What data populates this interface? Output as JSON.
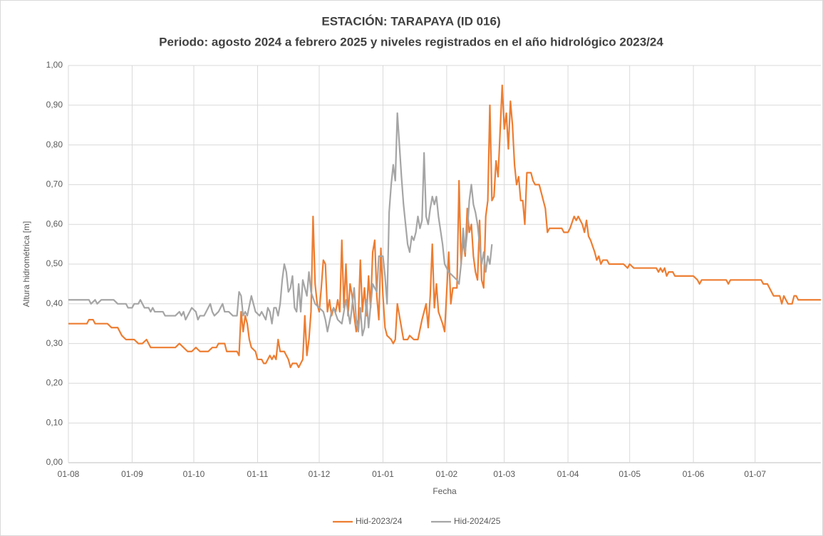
{
  "chart_data": {
    "type": "line",
    "title": "ESTACIÓN: TARAPAYA (ID 016)",
    "subtitle": "Periodo: agosto 2024 a febrero 2025 y niveles registrados en el año hidrológico 2023/24",
    "x_label": "Fecha",
    "y_label": "Altura hidrométrica [m]",
    "xlim": [
      0,
      366
    ],
    "ylim": [
      0,
      1
    ],
    "xticks": [
      {
        "value": 0,
        "label": "01-08"
      },
      {
        "value": 31,
        "label": "01-09"
      },
      {
        "value": 61,
        "label": "01-10"
      },
      {
        "value": 92,
        "label": "01-11"
      },
      {
        "value": 122,
        "label": "01-12"
      },
      {
        "value": 153,
        "label": "01-01"
      },
      {
        "value": 184,
        "label": "01-02"
      },
      {
        "value": 212,
        "label": "01-03"
      },
      {
        "value": 243,
        "label": "01-04"
      },
      {
        "value": 273,
        "label": "01-05"
      },
      {
        "value": 304,
        "label": "01-06"
      },
      {
        "value": 334,
        "label": "01-07"
      }
    ],
    "yticks": [
      {
        "value": 0,
        "label": "0,00"
      },
      {
        "value": 0.1,
        "label": "0,10"
      },
      {
        "value": 0.2,
        "label": "0,20"
      },
      {
        "value": 0.3,
        "label": "0,30"
      },
      {
        "value": 0.4,
        "label": "0,40"
      },
      {
        "value": 0.5,
        "label": "0,50"
      },
      {
        "value": 0.6,
        "label": "0,60"
      },
      {
        "value": 0.7,
        "label": "0,70"
      },
      {
        "value": 0.8,
        "label": "0,80"
      },
      {
        "value": 0.9,
        "label": "0,90"
      },
      {
        "value": 1,
        "label": "1,00"
      }
    ],
    "grid": true,
    "legend": "bottom",
    "series": [
      {
        "name": "Hid-2023/24",
        "color": "#ed7d31",
        "x": [
          0,
          9,
          10,
          12,
          13,
          19,
          21,
          24,
          26,
          28,
          32,
          34,
          36,
          38,
          40,
          44,
          48,
          52,
          54,
          56,
          58,
          60,
          62,
          64,
          68,
          70,
          72,
          73,
          76,
          77,
          80,
          82,
          83,
          84,
          85,
          86,
          87,
          88,
          89,
          91,
          92,
          94,
          95,
          96,
          98,
          99,
          100,
          101,
          102,
          103,
          105,
          106,
          107,
          108,
          109,
          111,
          112,
          113,
          114,
          115,
          116,
          117,
          118,
          119,
          120,
          121,
          122,
          123,
          124,
          125,
          126,
          127,
          128,
          129,
          130,
          131,
          132,
          133,
          134,
          135,
          136,
          137,
          138,
          139,
          140,
          141,
          142,
          143,
          144,
          145,
          146,
          147,
          148,
          149,
          150,
          151,
          152,
          153,
          154,
          155,
          157,
          158,
          159,
          160,
          161,
          163,
          165,
          166,
          168,
          170,
          172,
          173,
          174,
          175,
          176,
          177,
          178,
          179,
          180,
          182,
          183,
          184,
          185,
          186,
          187,
          189,
          190,
          191,
          192,
          193,
          194,
          195,
          196,
          197,
          198,
          199,
          200,
          201,
          202,
          203,
          204,
          205,
          206,
          207,
          208,
          209,
          211,
          212,
          213,
          214,
          215,
          216,
          217,
          218,
          219,
          220,
          221,
          222,
          223,
          225,
          226,
          227,
          229,
          231,
          232,
          233,
          234,
          236,
          240,
          241,
          243,
          244,
          246,
          247,
          248,
          250,
          251,
          252,
          253,
          254,
          256,
          257,
          258,
          259,
          260,
          262,
          263,
          270,
          272,
          273,
          275,
          286,
          287,
          288,
          289,
          290,
          291,
          292,
          294,
          295,
          304,
          306,
          307,
          308,
          320,
          321,
          322,
          337,
          338,
          340,
          341,
          343,
          346,
          347,
          348,
          349,
          350,
          352,
          353,
          354,
          355,
          366
        ],
        "values": [
          0.35,
          0.35,
          0.36,
          0.36,
          0.35,
          0.35,
          0.34,
          0.34,
          0.32,
          0.31,
          0.31,
          0.3,
          0.3,
          0.31,
          0.29,
          0.29,
          0.29,
          0.29,
          0.3,
          0.29,
          0.28,
          0.28,
          0.29,
          0.28,
          0.28,
          0.29,
          0.29,
          0.3,
          0.3,
          0.28,
          0.28,
          0.28,
          0.27,
          0.38,
          0.33,
          0.37,
          0.35,
          0.31,
          0.29,
          0.28,
          0.26,
          0.26,
          0.25,
          0.25,
          0.27,
          0.26,
          0.27,
          0.26,
          0.31,
          0.28,
          0.28,
          0.27,
          0.26,
          0.24,
          0.25,
          0.25,
          0.24,
          0.25,
          0.26,
          0.37,
          0.27,
          0.31,
          0.38,
          0.62,
          0.45,
          0.4,
          0.38,
          0.44,
          0.51,
          0.5,
          0.38,
          0.41,
          0.37,
          0.39,
          0.38,
          0.41,
          0.38,
          0.56,
          0.39,
          0.5,
          0.37,
          0.45,
          0.42,
          0.37,
          0.33,
          0.36,
          0.51,
          0.38,
          0.44,
          0.37,
          0.47,
          0.39,
          0.53,
          0.56,
          0.42,
          0.36,
          0.54,
          0.42,
          0.34,
          0.32,
          0.31,
          0.3,
          0.31,
          0.4,
          0.37,
          0.31,
          0.31,
          0.32,
          0.31,
          0.31,
          0.36,
          0.38,
          0.4,
          0.34,
          0.42,
          0.55,
          0.39,
          0.45,
          0.38,
          0.35,
          0.33,
          0.43,
          0.53,
          0.4,
          0.44,
          0.44,
          0.71,
          0.5,
          0.56,
          0.52,
          0.64,
          0.58,
          0.6,
          0.52,
          0.48,
          0.46,
          0.61,
          0.46,
          0.44,
          0.62,
          0.66,
          0.9,
          0.66,
          0.67,
          0.76,
          0.72,
          0.95,
          0.84,
          0.88,
          0.79,
          0.91,
          0.85,
          0.75,
          0.7,
          0.72,
          0.66,
          0.66,
          0.6,
          0.73,
          0.73,
          0.71,
          0.7,
          0.7,
          0.66,
          0.64,
          0.58,
          0.59,
          0.59,
          0.59,
          0.58,
          0.58,
          0.59,
          0.62,
          0.61,
          0.62,
          0.6,
          0.58,
          0.61,
          0.57,
          0.56,
          0.53,
          0.51,
          0.52,
          0.5,
          0.51,
          0.51,
          0.5,
          0.5,
          0.49,
          0.5,
          0.49,
          0.49,
          0.48,
          0.49,
          0.48,
          0.49,
          0.47,
          0.48,
          0.48,
          0.47,
          0.47,
          0.46,
          0.45,
          0.46,
          0.46,
          0.45,
          0.46,
          0.46,
          0.45,
          0.45,
          0.44,
          0.42,
          0.42,
          0.4,
          0.42,
          0.41,
          0.4,
          0.4,
          0.42,
          0.42,
          0.41,
          0.41
        ]
      },
      {
        "name": "Hid-2024/25",
        "color": "#a5a5a5",
        "x": [
          0,
          10,
          11,
          13,
          14,
          16,
          22,
          24,
          28,
          29,
          31,
          32,
          34,
          35,
          37,
          39,
          40,
          41,
          42,
          46,
          47,
          52,
          54,
          55,
          56,
          57,
          58,
          60,
          62,
          63,
          64,
          66,
          67,
          69,
          70,
          71,
          73,
          75,
          76,
          78,
          80,
          82,
          83,
          84,
          85,
          86,
          87,
          89,
          90,
          91,
          93,
          94,
          96,
          97,
          98,
          99,
          100,
          101,
          102,
          103,
          104,
          105,
          106,
          107,
          108,
          109,
          110,
          111,
          112,
          113,
          114,
          116,
          117,
          118,
          120,
          122,
          124,
          125,
          126,
          128,
          129,
          131,
          133,
          134,
          135,
          137,
          139,
          140,
          141,
          142,
          143,
          144,
          145,
          146,
          148,
          150,
          151,
          153,
          154,
          155,
          156,
          157,
          158,
          159,
          160,
          161,
          162,
          163,
          164,
          165,
          166,
          167,
          168,
          169,
          170,
          171,
          172,
          173,
          174,
          175,
          176,
          177,
          178,
          179,
          180,
          182,
          183,
          185,
          187,
          189,
          190,
          191,
          192,
          193,
          194,
          195,
          196,
          197,
          198,
          199,
          200,
          201,
          202,
          203,
          204,
          205,
          206
        ],
        "values": [
          0.41,
          0.41,
          0.4,
          0.41,
          0.4,
          0.41,
          0.41,
          0.4,
          0.4,
          0.39,
          0.39,
          0.4,
          0.4,
          0.41,
          0.39,
          0.39,
          0.38,
          0.39,
          0.38,
          0.38,
          0.37,
          0.37,
          0.38,
          0.37,
          0.38,
          0.36,
          0.37,
          0.39,
          0.38,
          0.36,
          0.37,
          0.37,
          0.38,
          0.4,
          0.38,
          0.37,
          0.38,
          0.4,
          0.38,
          0.38,
          0.37,
          0.37,
          0.43,
          0.42,
          0.37,
          0.38,
          0.37,
          0.42,
          0.4,
          0.38,
          0.37,
          0.38,
          0.36,
          0.39,
          0.38,
          0.35,
          0.39,
          0.39,
          0.37,
          0.4,
          0.46,
          0.5,
          0.48,
          0.43,
          0.44,
          0.47,
          0.39,
          0.38,
          0.45,
          0.38,
          0.46,
          0.42,
          0.48,
          0.43,
          0.4,
          0.39,
          0.38,
          0.36,
          0.33,
          0.38,
          0.39,
          0.36,
          0.35,
          0.38,
          0.41,
          0.35,
          0.44,
          0.36,
          0.33,
          0.39,
          0.32,
          0.34,
          0.41,
          0.34,
          0.45,
          0.43,
          0.52,
          0.52,
          0.47,
          0.4,
          0.63,
          0.7,
          0.75,
          0.71,
          0.88,
          0.8,
          0.72,
          0.65,
          0.6,
          0.55,
          0.53,
          0.57,
          0.56,
          0.58,
          0.62,
          0.59,
          0.61,
          0.78,
          0.62,
          0.6,
          0.64,
          0.67,
          0.65,
          0.67,
          0.62,
          0.55,
          0.5,
          0.48,
          0.47,
          0.46,
          0.45,
          0.5,
          0.59,
          0.53,
          0.58,
          0.66,
          0.7,
          0.65,
          0.63,
          0.6,
          0.55,
          0.5,
          0.53,
          0.48,
          0.52,
          0.5,
          0.55
        ]
      }
    ]
  }
}
